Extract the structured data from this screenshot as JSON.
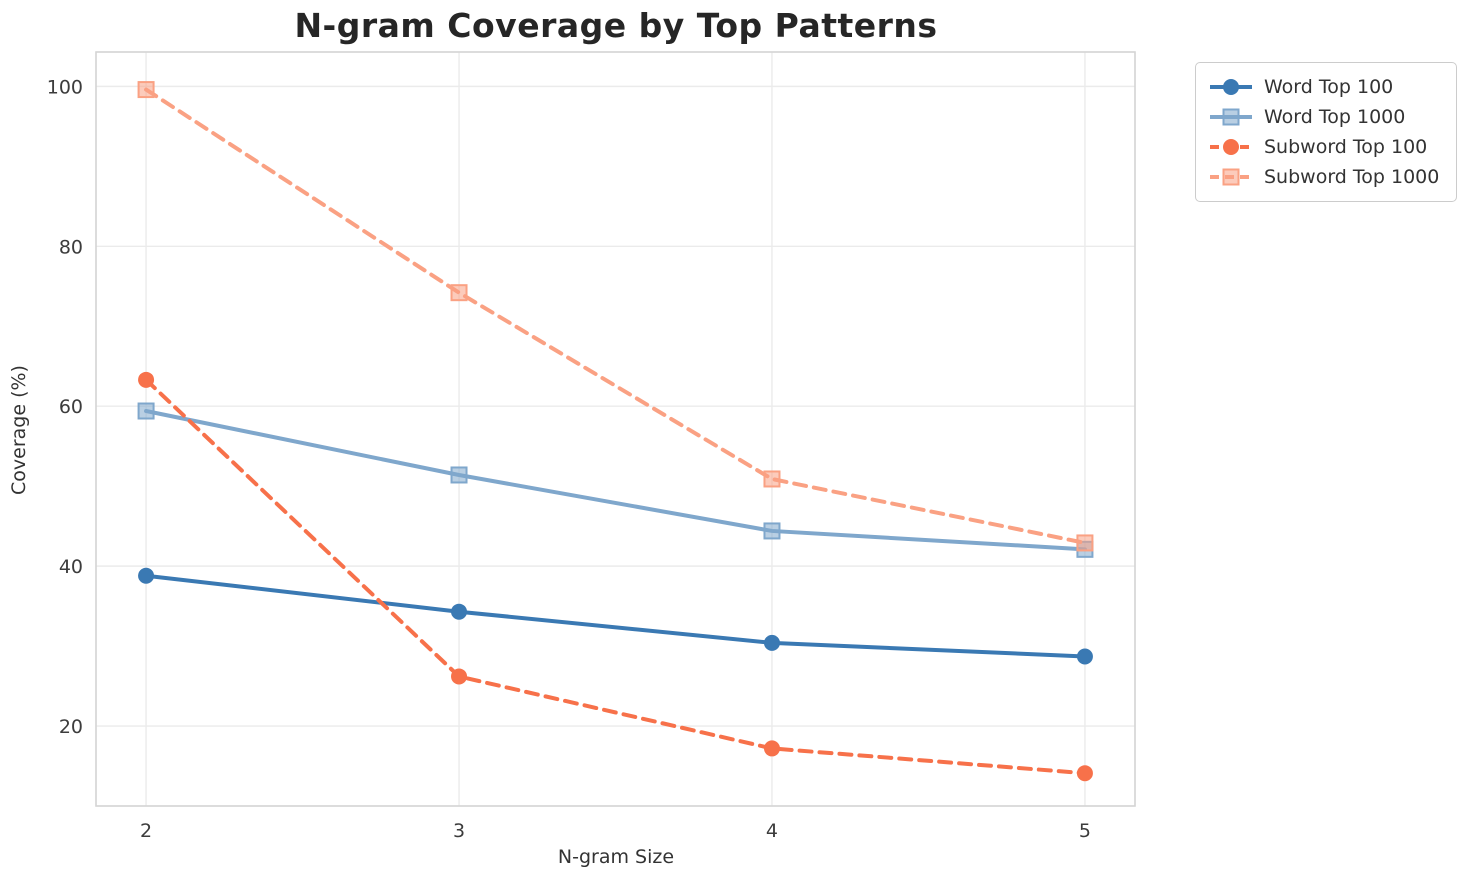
{
  "chart_data": {
    "type": "line",
    "title": "N-gram Coverage by Top Patterns",
    "xlabel": "N-gram Size",
    "ylabel": "Coverage (%)",
    "x": [
      2,
      3,
      4,
      5
    ],
    "xtick_labels": [
      "2",
      "3",
      "4",
      "5"
    ],
    "yticks": [
      20,
      40,
      60,
      80,
      100
    ],
    "ytick_labels": [
      "20",
      "40",
      "60",
      "80",
      "100"
    ],
    "xlim": [
      1.84,
      5.16
    ],
    "ylim": [
      10,
      104.3
    ],
    "grid": true,
    "legend_position": "outside-top-right",
    "series": [
      {
        "name": "Word Top 100",
        "values": [
          38.8,
          34.3,
          30.4,
          28.7
        ],
        "color": "#3a79b3",
        "line_style": "solid",
        "marker": "circle"
      },
      {
        "name": "Word Top 1000",
        "values": [
          59.4,
          51.4,
          44.4,
          42.1
        ],
        "color": "#7fa7cc",
        "line_style": "solid",
        "marker": "square"
      },
      {
        "name": "Subword Top 100",
        "values": [
          63.3,
          26.2,
          17.2,
          14.1
        ],
        "color": "#f7714a",
        "line_style": "dashed",
        "marker": "circle"
      },
      {
        "name": "Subword Top 1000",
        "values": [
          99.6,
          74.2,
          50.9,
          42.9
        ],
        "color": "#faa183",
        "line_style": "dashed",
        "marker": "square"
      }
    ],
    "colors": {
      "grid": "#ebebeb",
      "spine": "#d4d4d4",
      "tick_text": "#3c3c3c",
      "title_text": "#262626"
    }
  }
}
